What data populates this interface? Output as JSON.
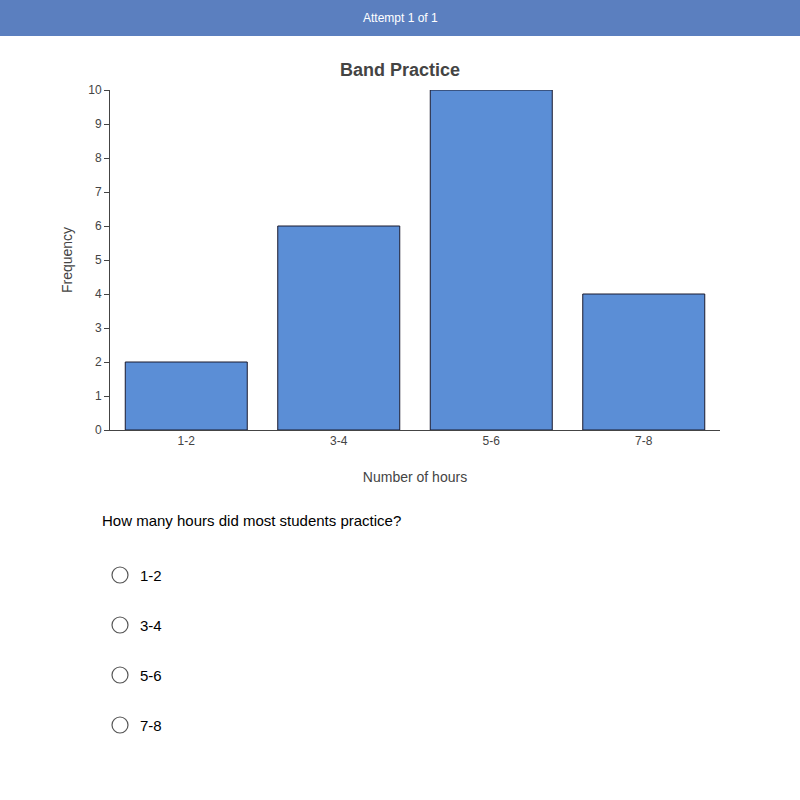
{
  "chart_data": {
    "type": "bar",
    "title": "Band Practice",
    "xlabel": "Number of hours",
    "ylabel": "Frequency",
    "categories": [
      "1-2",
      "3-4",
      "5-6",
      "7-8"
    ],
    "values": [
      2,
      6,
      10,
      4
    ],
    "color": "#5b8ed6",
    "ylim": [
      0,
      10
    ],
    "yticks": [
      0,
      1,
      2,
      3,
      4,
      5,
      6,
      7,
      8,
      9,
      10
    ],
    "grid": false,
    "annotations": [
      "Attempt 1 of 1",
      "How many hours did most students practice?",
      "1-2",
      "3-4",
      "5-6",
      "7-8"
    ]
  }
}
